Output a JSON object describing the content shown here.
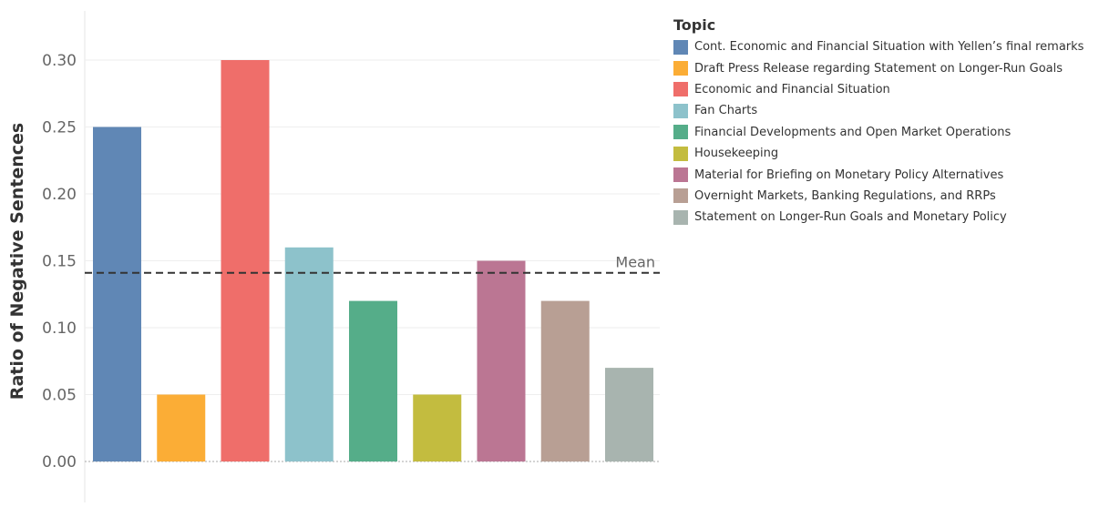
{
  "chart_data": {
    "type": "bar",
    "ylabel": "Ratio of Negative Sentences",
    "ylim": [
      0,
      0.3
    ],
    "y_ticks": [
      "0.00",
      "0.05",
      "0.10",
      "0.15",
      "0.20",
      "0.25",
      "0.30"
    ],
    "grid": true,
    "legend_title": "Topic",
    "legend_position": "right",
    "mean_label": "Mean",
    "mean_value": 0.141,
    "categories": [
      "Cont. Economic and Financial Situation with Yellen’s final remarks",
      "Draft Press Release regarding Statement on Longer-Run Goals",
      "Economic and Financial Situation",
      "Fan Charts",
      "Financial Developments and Open Market Operations",
      "Housekeeping",
      "Material for Briefing on Monetary Policy Alternatives",
      "Overnight Markets, Banking Regulations, and RRPs",
      "Statement on Longer-Run Goals and Monetary Policy"
    ],
    "values": [
      0.25,
      0.05,
      0.3,
      0.16,
      0.12,
      0.05,
      0.15,
      0.12,
      0.07
    ],
    "colors": [
      "#6087b5",
      "#fbad36",
      "#ef6e6a",
      "#8dc2cb",
      "#55ad89",
      "#c3bc3f",
      "#bb7693",
      "#b89f94",
      "#a8b4af"
    ]
  }
}
